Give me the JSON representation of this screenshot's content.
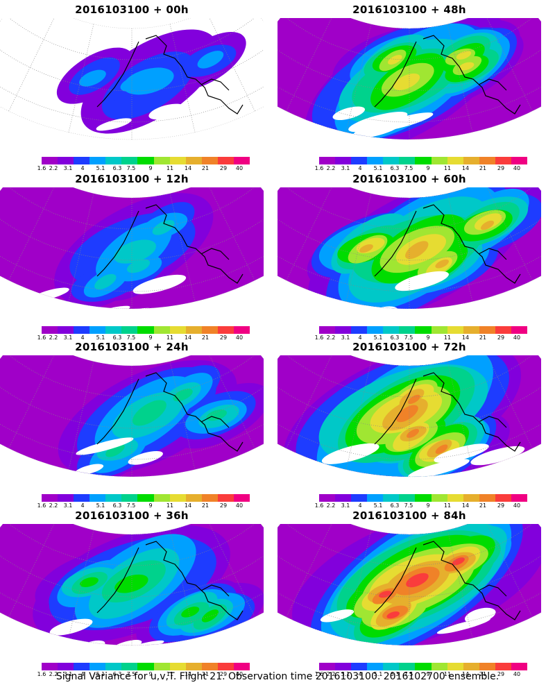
{
  "panels": [
    {
      "title": "2016103100 + 00h",
      "lead_h": 0
    },
    {
      "title": "2016103100 + 48h",
      "lead_h": 48
    },
    {
      "title": "2016103100 + 12h",
      "lead_h": 12
    },
    {
      "title": "2016103100 + 60h",
      "lead_h": 60
    },
    {
      "title": "2016103100 + 24h",
      "lead_h": 24
    },
    {
      "title": "2016103100 + 72h",
      "lead_h": 72
    },
    {
      "title": "2016103100 + 36h",
      "lead_h": 36
    },
    {
      "title": "2016103100 + 84h",
      "lead_h": 84
    }
  ],
  "colorbar": {
    "labels": [
      "1.6",
      "2.2",
      "3.1",
      "4",
      "5.1",
      "6.3",
      "7.5",
      "9",
      "11",
      "14",
      "21",
      "29",
      "40"
    ],
    "colors": [
      "#a000c8",
      "#8200dc",
      "#1e3cff",
      "#00a0ff",
      "#00c8c8",
      "#00d28c",
      "#00dc00",
      "#a0e632",
      "#e6dc32",
      "#e6af2d",
      "#f08228",
      "#fa3c3c",
      "#f00082"
    ]
  },
  "footer": "Signal Variance for u,v,T. Flight 21. Observation time 2016103100. 2016102700 ensemble."
}
